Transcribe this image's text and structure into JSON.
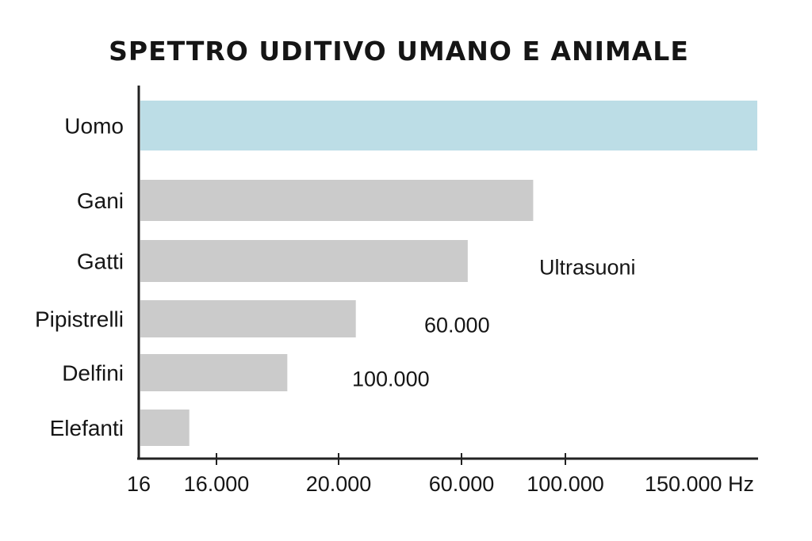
{
  "chart_data": {
    "type": "bar",
    "orientation": "horizontal",
    "title": "SPETTRO UDITIVO UMANO E ANIMALE",
    "categories": [
      "Uomo",
      "Gani",
      "Gatti",
      "Pipistrelli",
      "Delfini",
      "Elefanti"
    ],
    "x_ticks": [
      "16",
      "16.000",
      "20.000",
      "60.000",
      "100.000",
      "150.000 Hz"
    ],
    "bars": [
      {
        "category": "Uomo",
        "end_tick_position": 5.0,
        "color": "#bcdde6"
      },
      {
        "category": "Gani",
        "end_tick_position": 3.69,
        "color": "#cbcbcb"
      },
      {
        "category": "Gatti",
        "end_tick_position": 3.06,
        "color": "#cbcbcb"
      },
      {
        "category": "Pipistrelli",
        "end_tick_position": 2.14,
        "color": "#cbcbcb"
      },
      {
        "category": "Delfini",
        "end_tick_position": 1.58,
        "color": "#cbcbcb"
      },
      {
        "category": "Elefanti",
        "end_tick_position": 0.65,
        "color": "#cbcbcb"
      }
    ],
    "annotations": [
      {
        "text": "Ultrasuoni",
        "category": "Gatti"
      },
      {
        "text": "60.000",
        "category": "Pipistrelli"
      },
      {
        "text": "100.000",
        "category": "Delfini"
      }
    ],
    "grid": false,
    "legend": "none"
  }
}
